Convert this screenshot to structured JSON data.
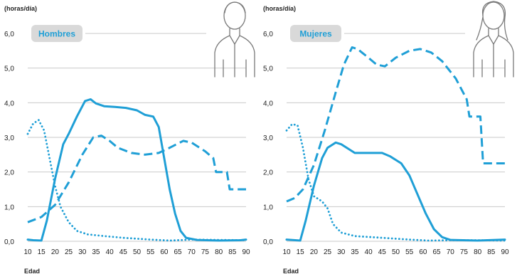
{
  "colors": {
    "series": "#1f9fd6",
    "grid": "#c9c9c9",
    "badge_bg": "#d9d9d9",
    "icon": "#7a7a7a"
  },
  "chart_data": [
    {
      "type": "line",
      "title": "Hombres",
      "icon": "man-icon",
      "unit_label": "(horas/día)",
      "xlabel": "Edad",
      "ylabel": "",
      "xlim": [
        10,
        90
      ],
      "ylim": [
        0,
        6
      ],
      "x_ticks": [
        "10",
        "15",
        "20",
        "25",
        "30",
        "35",
        "40",
        "45",
        "50",
        "55",
        "60",
        "65",
        "70",
        "75",
        "80",
        "85",
        "90"
      ],
      "y_ticks": [
        "0,0",
        "1,0",
        "2,0",
        "3,0",
        "4,0",
        "5,0",
        "6,0"
      ],
      "grid": true,
      "series": [
        {
          "style": "solid",
          "points": [
            [
              10,
              0.05
            ],
            [
              12,
              0.03
            ],
            [
              15,
              0.02
            ],
            [
              17,
              0.6
            ],
            [
              20,
              1.8
            ],
            [
              23,
              2.8
            ],
            [
              25,
              3.1
            ],
            [
              28,
              3.6
            ],
            [
              31,
              4.05
            ],
            [
              33,
              4.1
            ],
            [
              35,
              3.98
            ],
            [
              38,
              3.9
            ],
            [
              42,
              3.88
            ],
            [
              46,
              3.85
            ],
            [
              50,
              3.78
            ],
            [
              53,
              3.65
            ],
            [
              56,
              3.6
            ],
            [
              58,
              3.3
            ],
            [
              60,
              2.4
            ],
            [
              62,
              1.5
            ],
            [
              64,
              0.8
            ],
            [
              66,
              0.3
            ],
            [
              68,
              0.1
            ],
            [
              72,
              0.04
            ],
            [
              80,
              0.02
            ],
            [
              88,
              0.03
            ],
            [
              90,
              0.05
            ]
          ]
        },
        {
          "style": "dashed",
          "points": [
            [
              10,
              0.55
            ],
            [
              15,
              0.7
            ],
            [
              20,
              1.05
            ],
            [
              25,
              1.7
            ],
            [
              30,
              2.5
            ],
            [
              34,
              3.0
            ],
            [
              37,
              3.05
            ],
            [
              40,
              2.9
            ],
            [
              43,
              2.7
            ],
            [
              48,
              2.55
            ],
            [
              53,
              2.5
            ],
            [
              58,
              2.55
            ],
            [
              62,
              2.7
            ],
            [
              67,
              2.9
            ],
            [
              70,
              2.85
            ],
            [
              75,
              2.6
            ],
            [
              78,
              2.4
            ],
            [
              79,
              2.0
            ],
            [
              83,
              2.0
            ],
            [
              84,
              1.5
            ],
            [
              90,
              1.5
            ]
          ]
        },
        {
          "style": "dotted",
          "points": [
            [
              10,
              3.1
            ],
            [
              12,
              3.4
            ],
            [
              14,
              3.5
            ],
            [
              16,
              3.2
            ],
            [
              18,
              2.4
            ],
            [
              20,
              1.6
            ],
            [
              22,
              1.0
            ],
            [
              25,
              0.55
            ],
            [
              28,
              0.3
            ],
            [
              32,
              0.2
            ],
            [
              38,
              0.15
            ],
            [
              45,
              0.1
            ],
            [
              55,
              0.05
            ],
            [
              62,
              0.02
            ],
            [
              70,
              0.05
            ],
            [
              80,
              0.04
            ],
            [
              90,
              0.03
            ]
          ]
        }
      ]
    },
    {
      "type": "line",
      "title": "Mujeres",
      "icon": "woman-icon",
      "unit_label": "(horas/día)",
      "xlabel": "Edad",
      "ylabel": "",
      "xlim": [
        10,
        90
      ],
      "ylim": [
        0,
        6
      ],
      "x_ticks": [
        "10",
        "15",
        "20",
        "25",
        "30",
        "35",
        "40",
        "45",
        "50",
        "55",
        "60",
        "65",
        "70",
        "75",
        "80",
        "85",
        "90"
      ],
      "y_ticks": [
        "0,0",
        "1,0",
        "2,0",
        "3,0",
        "4,0",
        "5,0",
        "6,0"
      ],
      "grid": true,
      "series": [
        {
          "style": "solid",
          "points": [
            [
              10,
              0.05
            ],
            [
              15,
              0.02
            ],
            [
              17,
              0.6
            ],
            [
              20,
              1.6
            ],
            [
              23,
              2.4
            ],
            [
              25,
              2.7
            ],
            [
              28,
              2.85
            ],
            [
              30,
              2.8
            ],
            [
              33,
              2.65
            ],
            [
              35,
              2.55
            ],
            [
              40,
              2.55
            ],
            [
              45,
              2.55
            ],
            [
              48,
              2.45
            ],
            [
              52,
              2.25
            ],
            [
              55,
              1.9
            ],
            [
              58,
              1.35
            ],
            [
              61,
              0.8
            ],
            [
              64,
              0.35
            ],
            [
              67,
              0.12
            ],
            [
              70,
              0.04
            ],
            [
              80,
              0.02
            ],
            [
              90,
              0.05
            ]
          ]
        },
        {
          "style": "dashed",
          "points": [
            [
              10,
              1.15
            ],
            [
              13,
              1.25
            ],
            [
              16,
              1.5
            ],
            [
              20,
              2.2
            ],
            [
              24,
              3.2
            ],
            [
              28,
              4.3
            ],
            [
              31,
              5.1
            ],
            [
              34,
              5.6
            ],
            [
              36,
              5.55
            ],
            [
              40,
              5.3
            ],
            [
              43,
              5.1
            ],
            [
              46,
              5.05
            ],
            [
              50,
              5.3
            ],
            [
              55,
              5.5
            ],
            [
              59,
              5.55
            ],
            [
              63,
              5.45
            ],
            [
              67,
              5.2
            ],
            [
              72,
              4.7
            ],
            [
              76,
              4.1
            ],
            [
              77,
              3.6
            ],
            [
              81,
              3.6
            ],
            [
              82,
              2.25
            ],
            [
              90,
              2.25
            ]
          ]
        },
        {
          "style": "dotted",
          "points": [
            [
              10,
              3.2
            ],
            [
              12,
              3.38
            ],
            [
              14,
              3.35
            ],
            [
              16,
              2.7
            ],
            [
              18,
              1.8
            ],
            [
              20,
              1.3
            ],
            [
              23,
              1.15
            ],
            [
              25,
              0.95
            ],
            [
              27,
              0.5
            ],
            [
              30,
              0.25
            ],
            [
              35,
              0.15
            ],
            [
              45,
              0.1
            ],
            [
              55,
              0.05
            ],
            [
              62,
              0.02
            ],
            [
              70,
              0.03
            ],
            [
              80,
              0.03
            ],
            [
              90,
              0.02
            ]
          ]
        }
      ]
    }
  ]
}
